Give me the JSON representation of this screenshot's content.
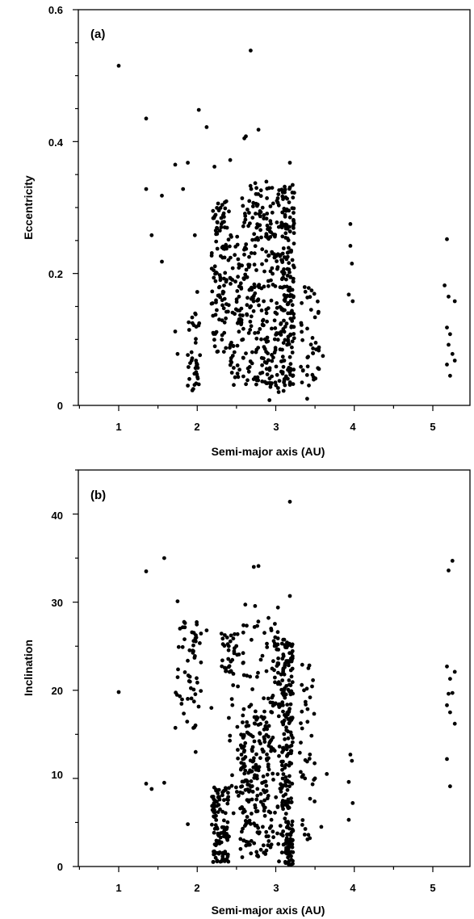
{
  "chart_data": [
    {
      "type": "scatter",
      "panel_label": "(a)",
      "xlabel": "Semi-major axis (AU)",
      "ylabel": "Eccentricity",
      "xlim": [
        0.5,
        5.35
      ],
      "ylim": [
        0,
        0.6
      ],
      "xticks": [
        1,
        2,
        3,
        4,
        5
      ],
      "xtick_labels": [
        "1",
        "2",
        "3",
        "4",
        "5"
      ],
      "yticks": [
        0,
        0.2,
        0.4,
        0.6
      ],
      "ytick_labels": [
        "0",
        "0.2",
        "0.4",
        "0.6"
      ],
      "grid": false,
      "marker_color": "#000000",
      "points": [
        [
          1.0,
          0.515
        ],
        [
          1.35,
          0.435
        ],
        [
          1.42,
          0.258
        ],
        [
          1.35,
          0.328
        ],
        [
          1.55,
          0.318
        ],
        [
          1.55,
          0.218
        ],
        [
          1.72,
          0.365
        ],
        [
          1.82,
          0.328
        ],
        [
          1.88,
          0.368
        ],
        [
          1.97,
          0.258
        ],
        [
          2.02,
          0.448
        ],
        [
          2.12,
          0.422
        ],
        [
          2.22,
          0.362
        ],
        [
          2.42,
          0.372
        ],
        [
          2.6,
          0.405
        ],
        [
          2.68,
          0.538
        ],
        [
          2.78,
          0.418
        ],
        [
          2.62,
          0.408
        ],
        [
          3.18,
          0.368
        ],
        [
          3.95,
          0.275
        ],
        [
          3.95,
          0.242
        ],
        [
          3.97,
          0.215
        ],
        [
          3.93,
          0.168
        ],
        [
          3.98,
          0.158
        ],
        [
          5.18,
          0.252
        ],
        [
          5.2,
          0.165
        ],
        [
          5.28,
          0.158
        ],
        [
          5.18,
          0.118
        ],
        [
          5.22,
          0.108
        ],
        [
          5.2,
          0.092
        ],
        [
          5.25,
          0.078
        ],
        [
          5.18,
          0.062
        ],
        [
          5.28,
          0.068
        ],
        [
          5.22,
          0.045
        ],
        [
          5.15,
          0.182
        ],
        [
          1.72,
          0.112
        ],
        [
          1.75,
          0.078
        ],
        [
          1.98,
          0.095
        ],
        [
          2.0,
          0.062
        ],
        [
          1.9,
          0.04
        ],
        [
          1.88,
          0.03
        ],
        [
          1.95,
          0.025
        ],
        [
          2.02,
          0.032
        ],
        [
          1.98,
          0.138
        ],
        [
          2.0,
          0.172
        ],
        [
          3.55,
          0.088
        ],
        [
          3.6,
          0.075
        ],
        [
          3.42,
          0.178
        ],
        [
          3.45,
          0.145
        ],
        [
          3.4,
          0.01
        ],
        [
          3.1,
          0.022
        ],
        [
          2.92,
          0.008
        ]
      ],
      "clusters": [
        {
          "x_range": [
            1.86,
            2.04
          ],
          "y_range": [
            0.02,
            0.14
          ],
          "n": 30
        },
        {
          "x_range": [
            2.18,
            2.42
          ],
          "y_range": [
            0.08,
            0.31
          ],
          "n": 110
        },
        {
          "x_range": [
            2.42,
            2.56
          ],
          "y_range": [
            0.03,
            0.26
          ],
          "n": 55
        },
        {
          "x_range": [
            2.56,
            2.92
          ],
          "y_range": [
            0.03,
            0.34
          ],
          "n": 190
        },
        {
          "x_range": [
            2.92,
            3.08
          ],
          "y_range": [
            0.02,
            0.34
          ],
          "n": 90
        },
        {
          "x_range": [
            3.08,
            3.24
          ],
          "y_range": [
            0.03,
            0.34
          ],
          "n": 170
        },
        {
          "x_range": [
            3.3,
            3.55
          ],
          "y_range": [
            0.03,
            0.18
          ],
          "n": 40
        }
      ]
    },
    {
      "type": "scatter",
      "panel_label": "(b)",
      "xlabel": "Semi-major axis (AU)",
      "ylabel": "Inclination",
      "xlim": [
        0.5,
        5.35
      ],
      "ylim": [
        0,
        45
      ],
      "xticks": [
        1,
        2,
        3,
        4,
        5
      ],
      "xtick_labels": [
        "1",
        "2",
        "3",
        "4",
        "5"
      ],
      "yticks": [
        0,
        10,
        20,
        30,
        40
      ],
      "ytick_labels": [
        "0",
        "10",
        "20",
        "30",
        "40"
      ],
      "grid": false,
      "marker_color": "#000000",
      "points": [
        [
          1.0,
          19.8
        ],
        [
          1.35,
          33.5
        ],
        [
          1.58,
          35.0
        ],
        [
          1.35,
          9.4
        ],
        [
          1.42,
          8.8
        ],
        [
          1.58,
          9.5
        ],
        [
          1.88,
          4.8
        ],
        [
          1.98,
          13.0
        ],
        [
          2.18,
          18.0
        ],
        [
          2.72,
          34.0
        ],
        [
          2.78,
          34.1
        ],
        [
          3.18,
          41.4
        ],
        [
          3.18,
          30.7
        ],
        [
          3.95,
          12.7
        ],
        [
          3.97,
          12.0
        ],
        [
          3.93,
          9.6
        ],
        [
          3.98,
          7.2
        ],
        [
          3.93,
          5.3
        ],
        [
          5.25,
          34.7
        ],
        [
          5.2,
          33.6
        ],
        [
          5.18,
          22.7
        ],
        [
          5.28,
          22.1
        ],
        [
          5.22,
          21.3
        ],
        [
          5.2,
          19.6
        ],
        [
          5.25,
          19.7
        ],
        [
          5.18,
          18.3
        ],
        [
          5.22,
          17.5
        ],
        [
          5.28,
          16.2
        ],
        [
          5.18,
          12.2
        ],
        [
          5.22,
          9.1
        ],
        [
          1.75,
          30.1
        ],
        [
          1.78,
          27.0
        ],
        [
          3.58,
          4.5
        ],
        [
          3.65,
          10.5
        ],
        [
          3.5,
          10.0
        ],
        [
          2.12,
          26.8
        ]
      ],
      "clusters": [
        {
          "x_range": [
            1.72,
            2.05
          ],
          "y_range": [
            15.5,
            29.0
          ],
          "n": 55
        },
        {
          "x_range": [
            2.18,
            2.4
          ],
          "y_range": [
            0.5,
            9.0
          ],
          "n": 110
        },
        {
          "x_range": [
            2.3,
            2.48
          ],
          "y_range": [
            22.0,
            26.5
          ],
          "n": 30
        },
        {
          "x_range": [
            2.4,
            2.6
          ],
          "y_range": [
            1.0,
            28.0
          ],
          "n": 30
        },
        {
          "x_range": [
            2.55,
            2.95
          ],
          "y_range": [
            1.0,
            17.0
          ],
          "n": 210
        },
        {
          "x_range": [
            2.55,
            3.05
          ],
          "y_range": [
            17.0,
            30.0
          ],
          "n": 45
        },
        {
          "x_range": [
            2.95,
            3.1
          ],
          "y_range": [
            0.5,
            26.0
          ],
          "n": 70
        },
        {
          "x_range": [
            3.08,
            3.22
          ],
          "y_range": [
            0.2,
            26.0
          ],
          "n": 170
        },
        {
          "x_range": [
            3.12,
            3.2
          ],
          "y_range": [
            0.2,
            3.5
          ],
          "n": 30
        },
        {
          "x_range": [
            3.3,
            3.5
          ],
          "y_range": [
            2.0,
            23.0
          ],
          "n": 40
        }
      ]
    }
  ]
}
